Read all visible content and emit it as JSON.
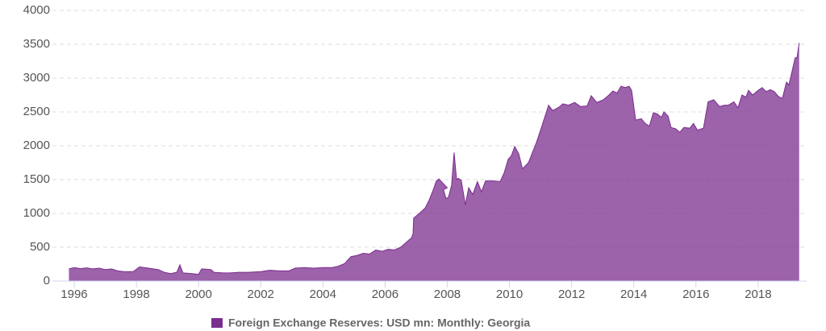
{
  "chart_data": {
    "type": "area",
    "x": [
      1995.83,
      1996.0,
      1996.2,
      1996.4,
      1996.6,
      1996.8,
      1997.0,
      1997.2,
      1997.4,
      1997.6,
      1997.9,
      1998.1,
      1998.4,
      1998.7,
      1998.9,
      1999.1,
      1999.3,
      1999.4,
      1999.5,
      1999.8,
      2000.0,
      2000.1,
      2000.4,
      2000.5,
      2000.8,
      2001.0,
      2001.3,
      2001.6,
      2002.0,
      2002.3,
      2002.6,
      2002.9,
      2003.1,
      2003.4,
      2003.7,
      2004.0,
      2004.3,
      2004.5,
      2004.7,
      2004.9,
      2005.1,
      2005.3,
      2005.5,
      2005.7,
      2005.9,
      2006.1,
      2006.3,
      2006.5,
      2006.7,
      2006.85,
      2006.9,
      2006.92,
      2007.1,
      2007.29,
      2007.42,
      2007.55,
      2007.65,
      2007.73,
      2008.0,
      2007.88,
      2007.96,
      2008.04,
      2008.14,
      2008.22,
      2008.3,
      2008.35,
      2008.45,
      2008.58,
      2008.69,
      2008.82,
      2008.97,
      2009.1,
      2009.23,
      2009.49,
      2009.7,
      2009.83,
      2009.96,
      2010.06,
      2010.17,
      2010.3,
      2010.42,
      2010.61,
      2010.74,
      2010.87,
      2011.05,
      2011.26,
      2011.39,
      2011.59,
      2011.72,
      2011.9,
      2012.1,
      2012.29,
      2012.5,
      2012.63,
      2012.81,
      2013.02,
      2013.2,
      2013.33,
      2013.46,
      2013.59,
      2013.72,
      2013.85,
      2013.93,
      2014.06,
      2014.24,
      2014.37,
      2014.5,
      2014.63,
      2014.76,
      2014.89,
      2014.97,
      2015.1,
      2015.2,
      2015.35,
      2015.48,
      2015.61,
      2015.8,
      2015.92,
      2016.05,
      2016.24,
      2016.39,
      2016.57,
      2016.76,
      2016.91,
      2017.04,
      2017.22,
      2017.35,
      2017.48,
      2017.61,
      2017.69,
      2017.82,
      2018.0,
      2018.13,
      2018.26,
      2018.39,
      2018.52,
      2018.65,
      2018.78,
      2018.91,
      2018.99,
      2019.09,
      2019.19,
      2019.25,
      2019.32
    ],
    "series": [
      {
        "name": "Foreign Exchange Reserves: USD mn: Monthly: Georgia",
        "color": "#7b2d8e",
        "values": [
          180,
          200,
          185,
          195,
          180,
          190,
          170,
          180,
          150,
          140,
          140,
          210,
          190,
          170,
          130,
          110,
          130,
          240,
          120,
          110,
          100,
          180,
          170,
          130,
          120,
          120,
          130,
          130,
          140,
          160,
          150,
          150,
          190,
          200,
          190,
          200,
          200,
          220,
          260,
          360,
          380,
          410,
          400,
          460,
          440,
          470,
          460,
          500,
          580,
          640,
          700,
          930,
          1000,
          1080,
          1200,
          1350,
          1480,
          1510,
          1380,
          1350,
          1220,
          1240,
          1420,
          1900,
          1500,
          1520,
          1490,
          1130,
          1380,
          1280,
          1470,
          1320,
          1480,
          1480,
          1470,
          1600,
          1800,
          1850,
          1990,
          1880,
          1660,
          1750,
          1900,
          2050,
          2300,
          2600,
          2520,
          2570,
          2620,
          2600,
          2640,
          2580,
          2590,
          2740,
          2640,
          2680,
          2750,
          2810,
          2780,
          2880,
          2860,
          2880,
          2820,
          2380,
          2400,
          2330,
          2290,
          2490,
          2470,
          2420,
          2500,
          2440,
          2270,
          2250,
          2200,
          2270,
          2260,
          2330,
          2230,
          2260,
          2650,
          2680,
          2580,
          2600,
          2600,
          2650,
          2560,
          2750,
          2720,
          2820,
          2750,
          2820,
          2860,
          2800,
          2830,
          2800,
          2730,
          2700,
          2940,
          2900,
          3100,
          3300,
          3300,
          3520
        ]
      }
    ],
    "xlim": [
      1995.3,
      2019.56
    ],
    "xticks": [
      1996,
      1998,
      2000,
      2002,
      2004,
      2006,
      2008,
      2010,
      2012,
      2014,
      2016,
      2018
    ],
    "ylim": [
      0,
      4000
    ],
    "yticks": [
      0,
      500,
      1000,
      1500,
      2000,
      2500,
      3000,
      3500,
      4000
    ],
    "grid": true,
    "legend": "bottom"
  }
}
